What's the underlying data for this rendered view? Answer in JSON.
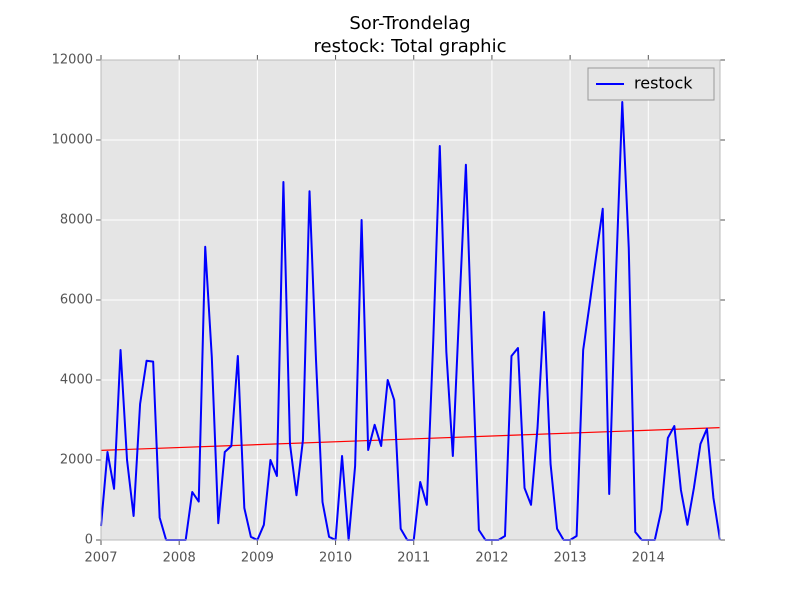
{
  "chart_data": {
    "type": "line",
    "title": "Sor-Trondelag",
    "subtitle": "restock: Total graphic",
    "x": [
      2007,
      2007.083,
      2007.167,
      2007.25,
      2007.333,
      2007.417,
      2007.5,
      2007.583,
      2007.667,
      2007.75,
      2007.833,
      2007.917,
      2008,
      2008.083,
      2008.167,
      2008.25,
      2008.333,
      2008.417,
      2008.5,
      2008.583,
      2008.667,
      2008.75,
      2008.833,
      2008.917,
      2009,
      2009.083,
      2009.167,
      2009.25,
      2009.333,
      2009.417,
      2009.5,
      2009.583,
      2009.667,
      2009.75,
      2009.833,
      2009.917,
      2010,
      2010.083,
      2010.167,
      2010.25,
      2010.333,
      2010.417,
      2010.5,
      2010.583,
      2010.667,
      2010.75,
      2010.833,
      2010.917,
      2011,
      2011.083,
      2011.167,
      2011.25,
      2011.333,
      2011.417,
      2011.5,
      2011.583,
      2011.667,
      2011.75,
      2011.833,
      2011.917,
      2012,
      2012.083,
      2012.167,
      2012.25,
      2012.333,
      2012.417,
      2012.5,
      2012.583,
      2012.667,
      2012.75,
      2012.833,
      2012.917,
      2013,
      2013.083,
      2013.167,
      2013.25,
      2013.333,
      2013.417,
      2013.5,
      2013.583,
      2013.667,
      2013.75,
      2013.833,
      2013.917,
      2014,
      2014.083,
      2014.167,
      2014.25,
      2014.333,
      2014.417,
      2014.5,
      2014.583,
      2014.667,
      2014.75,
      2014.833,
      2014.917
    ],
    "series": [
      {
        "name": "restock",
        "color": "#0000ff",
        "values": [
          350,
          2200,
          1280,
          4750,
          2000,
          600,
          3400,
          4480,
          4460,
          560,
          0,
          0,
          0,
          0,
          1200,
          960,
          7330,
          4580,
          420,
          2200,
          2350,
          4600,
          800,
          80,
          0,
          380,
          2000,
          1600,
          8950,
          2400,
          1120,
          2500,
          8720,
          4500,
          950,
          80,
          0,
          2100,
          0,
          1850,
          8000,
          2250,
          2880,
          2350,
          4000,
          3500,
          280,
          0,
          0,
          1450,
          880,
          5000,
          9850,
          4700,
          2100,
          5800,
          9380,
          4500,
          250,
          0,
          0,
          0,
          100,
          4600,
          4800,
          1300,
          880,
          2800,
          5700,
          1900,
          280,
          0,
          0,
          100,
          4750,
          5900,
          7100,
          8280,
          1150,
          6400,
          10950,
          7300,
          200,
          0,
          0,
          0,
          750,
          2550,
          2850,
          1250,
          380,
          1300,
          2400,
          2780,
          1050,
          0
        ]
      }
    ],
    "trend_line": {
      "color": "#ff0000",
      "x": [
        2007,
        2014.917
      ],
      "values": [
        2240,
        2810
      ]
    },
    "xlim": [
      2007,
      2014.917
    ],
    "xticks": [
      2007,
      2008,
      2009,
      2010,
      2011,
      2012,
      2013,
      2014
    ],
    "ylim": [
      0,
      12000
    ],
    "yticks": [
      0,
      2000,
      4000,
      6000,
      8000,
      10000,
      12000
    ],
    "grid": true,
    "legend": "upper right"
  }
}
